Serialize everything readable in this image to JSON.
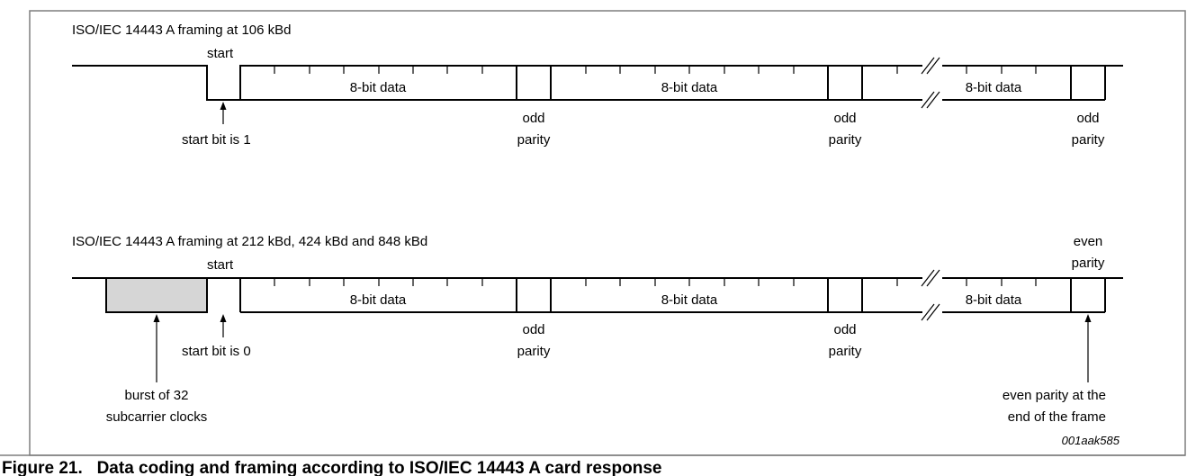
{
  "diagram": {
    "top": {
      "title": "ISO/IEC 14443 A framing at 106 kBd",
      "start_label": "start",
      "start_note": "start bit is 1",
      "data_label": "8-bit data",
      "odd_line1": "odd",
      "odd_line2": "parity"
    },
    "bottom": {
      "title": "ISO/IEC 14443 A framing at 212 kBd, 424 kBd and 848 kBd",
      "start_label": "start",
      "start_note": "start bit is 0",
      "data_label": "8-bit data",
      "odd_line1": "odd",
      "odd_line2": "parity",
      "even_line1": "even",
      "even_line2": "parity",
      "burst_line1": "burst of 32",
      "burst_line2": "subcarrier clocks",
      "even_note_line1": "even parity at the",
      "even_note_line2": "end of the frame"
    },
    "figure_code": "001aak585",
    "caption": "Figure 21.   Data coding and framing according to ISO/IEC 14443 A card response"
  }
}
